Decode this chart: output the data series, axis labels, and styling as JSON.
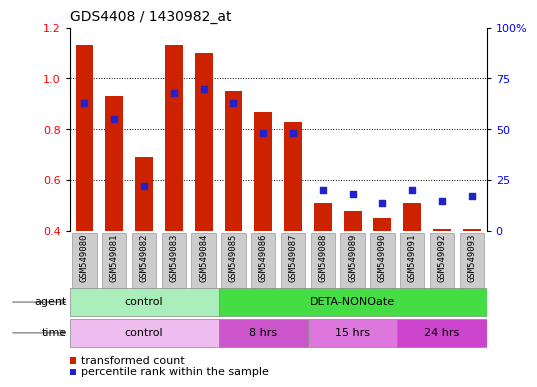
{
  "title": "GDS4408 / 1430982_at",
  "samples": [
    "GSM549080",
    "GSM549081",
    "GSM549082",
    "GSM549083",
    "GSM549084",
    "GSM549085",
    "GSM549086",
    "GSM549087",
    "GSM549088",
    "GSM549089",
    "GSM549090",
    "GSM549091",
    "GSM549092",
    "GSM549093"
  ],
  "transformed_count": [
    1.13,
    0.93,
    0.69,
    1.13,
    1.1,
    0.95,
    0.87,
    0.83,
    0.51,
    0.48,
    0.45,
    0.51,
    0.41,
    0.41
  ],
  "percentile_rank": [
    63,
    55,
    22,
    68,
    70,
    63,
    48,
    48,
    20,
    18,
    14,
    20,
    15,
    17
  ],
  "bar_bottom": 0.4,
  "ylim_left": [
    0.4,
    1.2
  ],
  "ylim_right": [
    0,
    100
  ],
  "yticks_left": [
    0.4,
    0.6,
    0.8,
    1.0,
    1.2
  ],
  "yticks_right": [
    0,
    25,
    50,
    75,
    100
  ],
  "ytick_labels_right": [
    "0",
    "25",
    "50",
    "75",
    "100%"
  ],
  "bar_color": "#CC2200",
  "dot_color": "#2222CC",
  "grid_color": "#000000",
  "tick_bg_color": "#CCCCCC",
  "agent_label": "agent",
  "time_label": "time",
  "agent_control_color": "#AAEEBB",
  "agent_deta_color": "#44DD44",
  "time_control_color": "#EEBCEE",
  "time_8hrs_color": "#CC55CC",
  "time_15hrs_color": "#DD77DD",
  "time_24hrs_color": "#CC44CC",
  "legend_items": [
    {
      "label": "transformed count",
      "color": "#CC2200"
    },
    {
      "label": "percentile rank within the sample",
      "color": "#2222CC"
    }
  ],
  "figsize": [
    5.28,
    3.84
  ],
  "dpi": 100
}
